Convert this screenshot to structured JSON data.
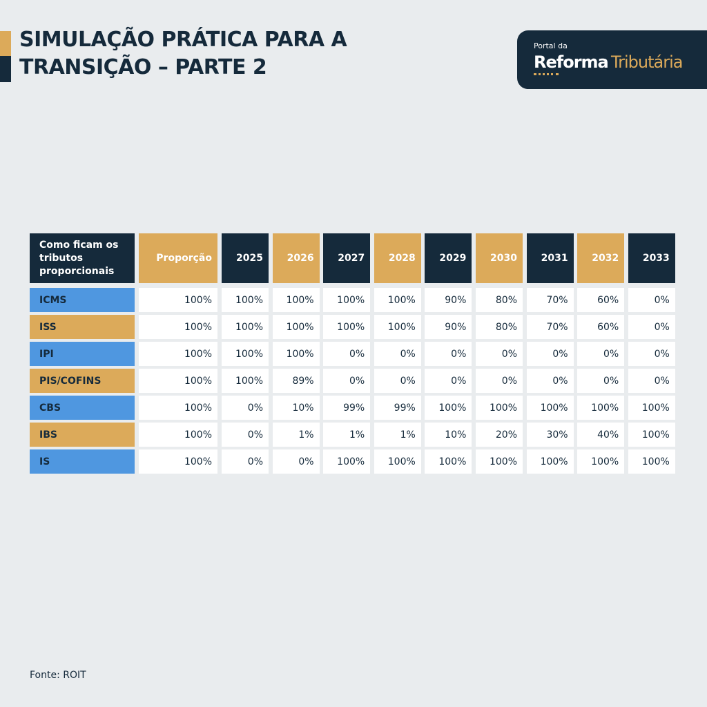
{
  "header": {
    "title_lines": [
      "SIMULAÇÃO PRÁTICA PARA A",
      "TRANSIÇÃO – PARTE 2"
    ]
  },
  "logo": {
    "small": "Portal da",
    "bold": "Reforma",
    "light": "Tributária"
  },
  "table": {
    "columns": [
      "Como ficam os tributos proporcionais",
      "Proporção",
      "2025",
      "2026",
      "2027",
      "2028",
      "2029",
      "2030",
      "2031",
      "2032",
      "2033"
    ],
    "rows": [
      [
        "ICMS",
        "100%",
        "100%",
        "100%",
        "100%",
        "100%",
        "90%",
        "80%",
        "70%",
        "60%",
        "0%"
      ],
      [
        "ISS",
        "100%",
        "100%",
        "100%",
        "100%",
        "100%",
        "90%",
        "80%",
        "70%",
        "60%",
        "0%"
      ],
      [
        "IPI",
        "100%",
        "100%",
        "100%",
        "0%",
        "0%",
        "0%",
        "0%",
        "0%",
        "0%",
        "0%"
      ],
      [
        "PIS/COFINS",
        "100%",
        "100%",
        "89%",
        "0%",
        "0%",
        "0%",
        "0%",
        "0%",
        "0%",
        "0%"
      ],
      [
        "CBS",
        "100%",
        "0%",
        "10%",
        "99%",
        "99%",
        "100%",
        "100%",
        "100%",
        "100%",
        "100%"
      ],
      [
        "IBS",
        "100%",
        "0%",
        "1%",
        "1%",
        "1%",
        "10%",
        "20%",
        "30%",
        "40%",
        "100%"
      ],
      [
        "IS",
        "100%",
        "0%",
        "0%",
        "100%",
        "100%",
        "100%",
        "100%",
        "100%",
        "100%",
        "100%"
      ]
    ]
  },
  "source": "Fonte: ROIT"
}
